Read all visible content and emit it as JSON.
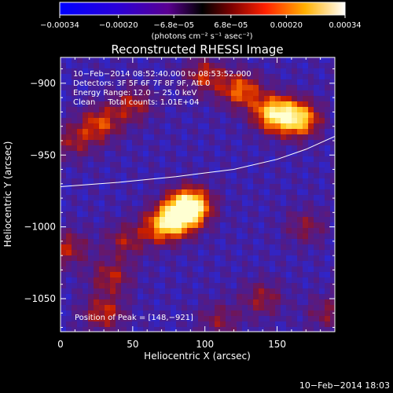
{
  "chart_data": {
    "type": "heatmap",
    "title": "Reconstructed RHESSI Image",
    "xlabel": "Heliocentric X (arcsec)",
    "ylabel": "Heliocentric Y (arcsec)",
    "xlim": [
      0,
      190
    ],
    "ylim": [
      -1073,
      -882
    ],
    "xticks": [
      0,
      50,
      100,
      150
    ],
    "xtick_labels": [
      "0",
      "50",
      "100",
      "150"
    ],
    "yticks": [
      -900,
      -950,
      -1000,
      -1050
    ],
    "ytick_labels": [
      "−900",
      "−950",
      "−1000",
      "−1050"
    ],
    "colorbar": {
      "range": [
        -0.00034,
        0.00034
      ],
      "ticks": [
        -0.00034,
        -0.0002,
        -6.8e-05,
        6.8e-05,
        0.0002,
        0.00034
      ],
      "tick_labels": [
        "−0.00034",
        "−0.00020",
        "−6.8e−05",
        "6.8e−05",
        "0.00020",
        "0.00034"
      ],
      "unit_label": "(photons cm⁻² s⁻¹ asec⁻²)"
    },
    "info_lines": [
      "10−Feb−2014 08:52:40.000 to 08:53:52.000",
      "Detectors: 3F 5F 6F 7F 8F 9F, Att 0",
      "Energy Range: 12.0 − 25.0 keV",
      "Clean     Total counts: 1.01E+04"
    ],
    "peak_label": "Position of Peak = [148,−921]",
    "peak": [
      148,
      -921
    ],
    "limb_curve": [
      [
        0,
        -972
      ],
      [
        40,
        -969
      ],
      [
        80,
        -965
      ],
      [
        120,
        -960
      ],
      [
        150,
        -953
      ],
      [
        170,
        -946
      ],
      [
        190,
        -937
      ]
    ],
    "sources": [
      {
        "x": 90,
        "y": -985,
        "strength": 1.0
      },
      {
        "x": 82,
        "y": -993,
        "strength": 0.8
      },
      {
        "x": 70,
        "y": -1000,
        "strength": 0.6
      },
      {
        "x": 45,
        "y": -1010,
        "strength": 0.35
      },
      {
        "x": 165,
        "y": -925,
        "strength": 0.85
      },
      {
        "x": 148,
        "y": -921,
        "strength": 0.9
      },
      {
        "x": 125,
        "y": -905,
        "strength": 0.6
      },
      {
        "x": 100,
        "y": -895,
        "strength": 0.45
      },
      {
        "x": 28,
        "y": -928,
        "strength": 0.5
      },
      {
        "x": 50,
        "y": -915,
        "strength": 0.4
      },
      {
        "x": 10,
        "y": -940,
        "strength": 0.35
      },
      {
        "x": 5,
        "y": -1015,
        "strength": 0.4
      },
      {
        "x": 30,
        "y": -1060,
        "strength": 0.45
      },
      {
        "x": 35,
        "y": -1035,
        "strength": 0.4
      },
      {
        "x": 140,
        "y": -1050,
        "strength": 0.35
      },
      {
        "x": 170,
        "y": -1000,
        "strength": 0.3
      },
      {
        "x": 110,
        "y": -1065,
        "strength": 0.3
      },
      {
        "x": 185,
        "y": -1060,
        "strength": 0.3
      }
    ]
  },
  "footer_timestamp": "10−Feb−2014 18:03"
}
